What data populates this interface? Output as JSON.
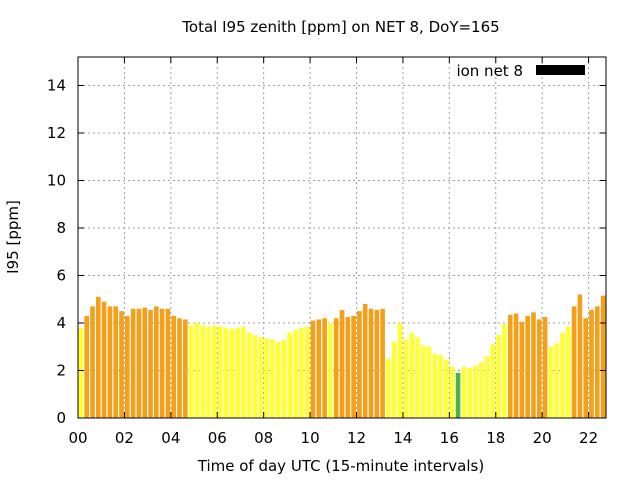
{
  "chart_data": {
    "type": "bar",
    "title": "Total I95 zenith [ppm] on NET 8, DoY=165",
    "xlabel": "Time of day UTC (15-minute intervals)",
    "ylabel": "I95 [ppm]",
    "xlim": [
      0,
      22.75
    ],
    "ylim": [
      0,
      15.2
    ],
    "x_ticks": [
      "00",
      "02",
      "04",
      "06",
      "08",
      "10",
      "12",
      "14",
      "16",
      "18",
      "20",
      "22"
    ],
    "y_ticks": [
      "0",
      "2",
      "4",
      "6",
      "8",
      "10",
      "12",
      "14"
    ],
    "grid": true,
    "legend": {
      "label": "ion net 8",
      "color": "#000000",
      "placement": "top-right"
    },
    "bar_interval_hours": 0.25,
    "colors": {
      "orange": "#f5a01a",
      "yellow": "#ffff33",
      "green": "#4caf50"
    },
    "values": [
      3.8,
      4.3,
      4.7,
      5.1,
      4.9,
      4.7,
      4.7,
      4.5,
      4.3,
      4.6,
      4.6,
      4.65,
      4.55,
      4.7,
      4.6,
      4.6,
      4.3,
      4.2,
      4.15,
      3.9,
      4.0,
      3.9,
      3.85,
      3.9,
      3.85,
      3.8,
      3.75,
      3.8,
      3.85,
      3.6,
      3.5,
      3.4,
      3.35,
      3.3,
      3.2,
      3.3,
      3.6,
      3.7,
      3.8,
      3.85,
      4.1,
      4.15,
      4.2,
      4.0,
      4.2,
      4.55,
      4.25,
      4.3,
      4.5,
      4.8,
      4.6,
      4.55,
      4.6,
      2.5,
      3.2,
      4.0,
      3.3,
      3.6,
      3.4,
      3.05,
      3.0,
      2.7,
      2.65,
      2.45,
      2.15,
      1.9,
      2.15,
      2.1,
      2.2,
      2.35,
      2.6,
      3.1,
      3.5,
      3.95,
      4.35,
      4.4,
      4.05,
      4.3,
      4.45,
      4.15,
      4.25,
      3.0,
      3.15,
      3.6,
      3.85,
      4.7,
      5.2,
      4.2,
      4.55,
      4.7,
      5.15
    ],
    "bar_colors": [
      "yellow",
      "orange",
      "orange",
      "orange",
      "orange",
      "orange",
      "orange",
      "orange",
      "orange",
      "orange",
      "orange",
      "orange",
      "orange",
      "orange",
      "orange",
      "orange",
      "orange",
      "orange",
      "orange",
      "yellow",
      "yellow",
      "yellow",
      "yellow",
      "yellow",
      "yellow",
      "yellow",
      "yellow",
      "yellow",
      "yellow",
      "yellow",
      "yellow",
      "yellow",
      "yellow",
      "yellow",
      "yellow",
      "yellow",
      "yellow",
      "yellow",
      "yellow",
      "yellow",
      "orange",
      "orange",
      "orange",
      "yellow",
      "orange",
      "orange",
      "orange",
      "orange",
      "orange",
      "orange",
      "orange",
      "orange",
      "orange",
      "yellow",
      "yellow",
      "yellow",
      "yellow",
      "yellow",
      "yellow",
      "yellow",
      "yellow",
      "yellow",
      "yellow",
      "yellow",
      "yellow",
      "green",
      "yellow",
      "yellow",
      "yellow",
      "yellow",
      "yellow",
      "yellow",
      "yellow",
      "yellow",
      "orange",
      "orange",
      "orange",
      "orange",
      "orange",
      "orange",
      "orange",
      "yellow",
      "yellow",
      "yellow",
      "yellow",
      "orange",
      "orange",
      "orange",
      "orange",
      "orange",
      "orange"
    ]
  }
}
